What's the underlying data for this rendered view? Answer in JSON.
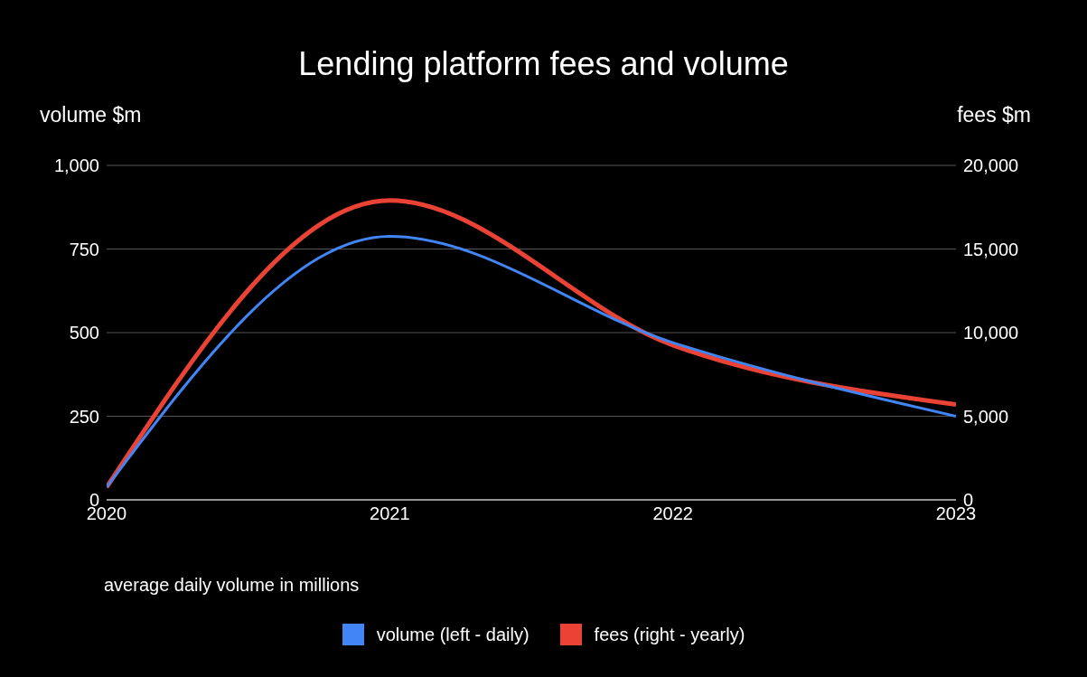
{
  "chart_data": {
    "type": "line",
    "title": "Lending platform fees and volume",
    "ylabel": "volume $m",
    "y2label": "fees $m",
    "x": [
      2020,
      2021,
      2022,
      2023
    ],
    "series": [
      {
        "name": "volume (left - daily)",
        "color": "#4285f4",
        "values": [
          38,
          788,
          470,
          250
        ]
      },
      {
        "name": "fees (right - yearly)",
        "color": "#ea4335",
        "values": [
          750,
          17900,
          9250,
          5700
        ],
        "axis": "y2"
      }
    ],
    "xlim": [
      2020,
      2023
    ],
    "xticks": [
      2020,
      2021,
      2022,
      2023
    ],
    "ylim": [
      0,
      1000
    ],
    "yticks": [
      0,
      250,
      500,
      750,
      {
        "value": 1000,
        "label": "1,000"
      }
    ],
    "y2lim": [
      0,
      20000
    ],
    "y2ticks": [
      0,
      {
        "value": 5000,
        "label": "5,000"
      },
      {
        "value": 10000,
        "label": "10,000"
      },
      {
        "value": 15000,
        "label": "15,000"
      },
      {
        "value": 20000,
        "label": "20,000"
      }
    ],
    "grid": "y",
    "legend": "bottom",
    "marker": "none",
    "line_style": "solid",
    "annotations": [
      "average daily volume in millions"
    ]
  }
}
